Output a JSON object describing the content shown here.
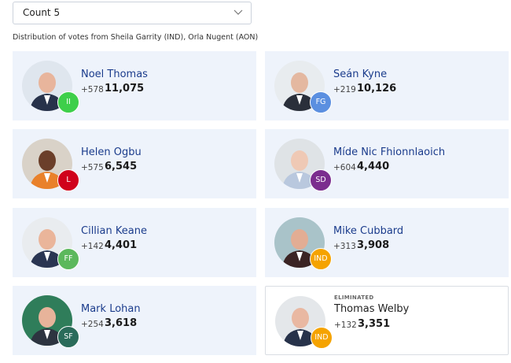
{
  "dropdown": {
    "label": "Count 5"
  },
  "subtitle": "Distribution of votes from Sheila Garrity (IND), Orla Nugent (AON)",
  "candidates": [
    {
      "name": "Noel Thomas",
      "party": "II",
      "color": "#3ecf4a",
      "change": "+578",
      "votes": "11,075"
    },
    {
      "name": "Seán Kyne",
      "party": "FG",
      "color": "#5b8fe0",
      "change": "+219",
      "votes": "10,126"
    },
    {
      "name": "Helen Ogbu",
      "party": "L",
      "color": "#d0021b",
      "change": "+575",
      "votes": "6,545"
    },
    {
      "name": "Míde Nic Fhionnlaoich",
      "party": "SD",
      "color": "#7b2d8e",
      "change": "+604",
      "votes": "4,440"
    },
    {
      "name": "Cillian Keane",
      "party": "FF",
      "color": "#5cb85c",
      "change": "+142",
      "votes": "4,401"
    },
    {
      "name": "Mike Cubbard",
      "party": "IND",
      "color": "#f5a300",
      "change": "+313",
      "votes": "3,908"
    },
    {
      "name": "Mark Lohan",
      "party": "SF",
      "color": "#2a6b5a",
      "change": "+254",
      "votes": "3,618"
    },
    {
      "name": "Thomas Welby",
      "party": "IND",
      "color": "#f5a300",
      "change": "+132",
      "votes": "3,351",
      "status": "ELIMINATED"
    }
  ]
}
